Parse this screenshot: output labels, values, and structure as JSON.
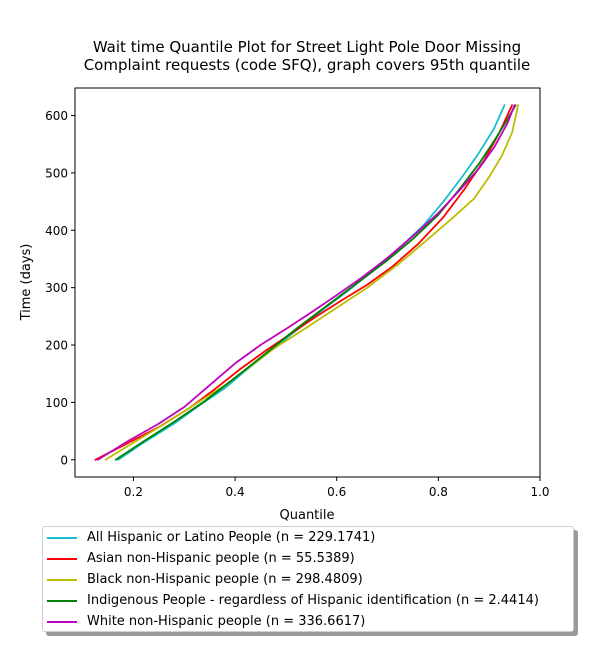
{
  "chart_data": {
    "type": "line",
    "title": "Wait time Quantile Plot for Street Light Pole Door Missing\nComplaint  requests (code SFQ), graph covers 95th quantile",
    "xlabel": "Quantile",
    "ylabel": "Time (days)",
    "xlim": [
      0.085,
      1.0
    ],
    "ylim": [
      -30,
      648
    ],
    "xticks": [
      0.2,
      0.4,
      0.6,
      0.8,
      1.0
    ],
    "xtick_labels": [
      "0.2",
      "0.4",
      "0.6",
      "0.8",
      "1.0"
    ],
    "yticks": [
      0,
      100,
      200,
      300,
      400,
      500,
      600
    ],
    "ytick_labels": [
      "0",
      "100",
      "200",
      "300",
      "400",
      "500",
      "600"
    ],
    "grid": false,
    "legend_position": "below plot",
    "series": [
      {
        "name": "All Hispanic or Latino People (n = 229.1741)",
        "color": "#17becf",
        "x": [
          0.17,
          0.22,
          0.28,
          0.33,
          0.38,
          0.42,
          0.47,
          0.52,
          0.57,
          0.62,
          0.67,
          0.72,
          0.77,
          0.81,
          0.85,
          0.88,
          0.91,
          0.93
        ],
        "y": [
          0,
          30,
          63,
          95,
          125,
          155,
          190,
          225,
          260,
          293,
          328,
          366,
          408,
          450,
          497,
          535,
          578,
          618
        ]
      },
      {
        "name": "Asian non-Hispanic people (n = 55.5389)",
        "color": "#ff0000",
        "x": [
          0.125,
          0.18,
          0.25,
          0.31,
          0.36,
          0.41,
          0.46,
          0.51,
          0.56,
          0.61,
          0.66,
          0.71,
          0.76,
          0.81,
          0.85,
          0.89,
          0.92,
          0.945
        ],
        "y": [
          0,
          25,
          57,
          90,
          123,
          158,
          190,
          220,
          250,
          278,
          305,
          337,
          376,
          423,
          470,
          522,
          570,
          618
        ]
      },
      {
        "name": "Black non-Hispanic people (n = 298.4809)",
        "color": "#bcbd00",
        "x": [
          0.145,
          0.2,
          0.26,
          0.32,
          0.38,
          0.43,
          0.48,
          0.54,
          0.6,
          0.66,
          0.72,
          0.78,
          0.83,
          0.87,
          0.9,
          0.925,
          0.945,
          0.957
        ],
        "y": [
          0,
          30,
          62,
          96,
          130,
          163,
          196,
          230,
          265,
          300,
          340,
          385,
          423,
          455,
          493,
          530,
          570,
          618
        ]
      },
      {
        "name": "Indigenous People - regardless of Hispanic identification (n = 2.4414)",
        "color": "#008000",
        "x": [
          0.165,
          0.22,
          0.28,
          0.34,
          0.4,
          0.46,
          0.52,
          0.58,
          0.64,
          0.7,
          0.75,
          0.8,
          0.84,
          0.88,
          0.91,
          0.935,
          0.952
        ],
        "y": [
          0,
          32,
          66,
          102,
          143,
          185,
          228,
          268,
          308,
          348,
          385,
          427,
          470,
          516,
          556,
          592,
          618
        ]
      },
      {
        "name": "White non-Hispanic people (n = 336.6617)",
        "color": "#bf00bf",
        "x": [
          0.13,
          0.19,
          0.25,
          0.3,
          0.35,
          0.4,
          0.45,
          0.5,
          0.55,
          0.6,
          0.65,
          0.7,
          0.75,
          0.8,
          0.84,
          0.88,
          0.91,
          0.935,
          0.95
        ],
        "y": [
          0,
          33,
          63,
          92,
          130,
          168,
          200,
          228,
          257,
          287,
          318,
          352,
          390,
          430,
          468,
          508,
          545,
          585,
          618
        ]
      }
    ]
  }
}
